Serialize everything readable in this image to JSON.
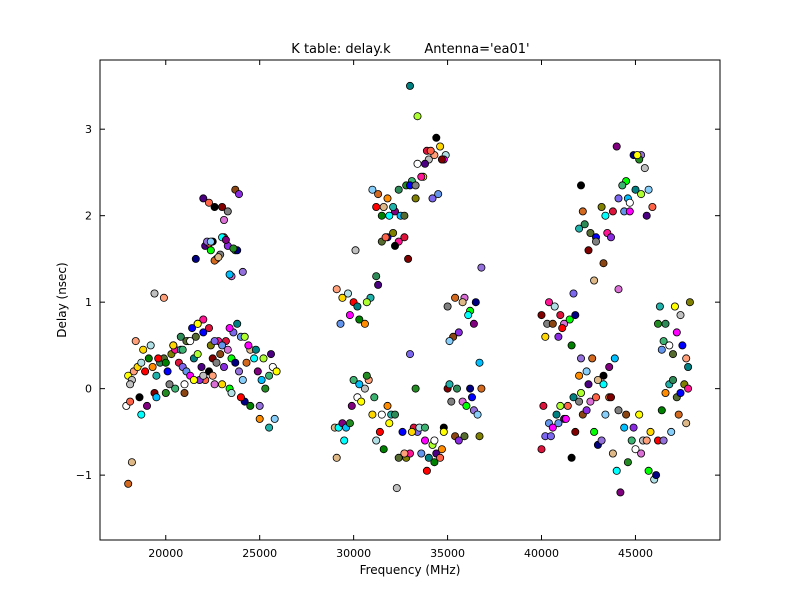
{
  "chart_data": {
    "type": "scatter",
    "title": "K table: delay.k",
    "antenna_label": "Antenna='ea01'",
    "xlabel": "Frequency (MHz)",
    "ylabel": "Delay (nsec)",
    "xlim": [
      16500,
      49500
    ],
    "ylim": [
      -1.75,
      3.8
    ],
    "xticks": [
      20000,
      25000,
      30000,
      35000,
      40000,
      45000
    ],
    "yticks": [
      -1,
      0,
      1,
      2,
      3
    ],
    "xtick_labels": [
      "20000",
      "25000",
      "30000",
      "35000",
      "40000",
      "45000"
    ],
    "ytick_labels": [
      "−1",
      "0",
      "1",
      "2",
      "3"
    ],
    "grid": false,
    "legend": "none",
    "marker": "circle, black edge",
    "palette": [
      "#ffffff",
      "#000000",
      "#ff0000",
      "#00ff00",
      "#0000ff",
      "#00ffff",
      "#ff00ff",
      "#ffff00",
      "#800000",
      "#008000",
      "#000080",
      "#808000",
      "#800080",
      "#008080",
      "#c0c0c0",
      "#808080",
      "#ff8c00",
      "#9370db",
      "#ff1493",
      "#00bfff",
      "#adff2f",
      "#ffa07a",
      "#8b4513",
      "#20b2aa",
      "#87cefa",
      "#dc143c",
      "#228b22",
      "#4b0082",
      "#ffd700",
      "#8a2be2",
      "#2e8b57",
      "#d2691e",
      "#7b68ee",
      "#3cb371",
      "#ff6347",
      "#b0e0e6",
      "#da70d6",
      "#556b2f",
      "#deb887",
      "#6495ed"
    ],
    "series": [
      {
        "x": [
          17900,
          18000,
          18200,
          18300,
          18500,
          18700,
          18900,
          19100,
          19300,
          19500,
          19700,
          19900,
          20100,
          20300,
          20500,
          20700,
          20900,
          21100,
          21300,
          21500,
          21700,
          21900,
          22100,
          22300,
          22500,
          22700,
          22900,
          23100,
          23300,
          23500,
          23700,
          23900,
          24100,
          24300,
          24500,
          24700,
          24900,
          25100,
          25300,
          25500,
          25700,
          25900,
          18100,
          18400,
          18800,
          19200,
          19600,
          20000,
          20400,
          20800,
          21200,
          21600,
          22000,
          22400,
          22800,
          23200,
          23600,
          24000,
          24400,
          24800,
          25200,
          25600,
          18100,
          18600,
          19400,
          20200,
          21000,
          21800,
          22600,
          23400,
          24200,
          25000,
          25800,
          18000,
          18200,
          18700,
          19000,
          19500,
          20000,
          20500,
          21000,
          21500,
          22000,
          22500,
          23000,
          23500,
          24000,
          24500,
          25000,
          25500,
          20800,
          21100,
          21400,
          21700,
          22000,
          22300,
          22600,
          23000,
          23400,
          23800,
          24200,
          22000,
          22300,
          22600,
          23000,
          23300,
          23700,
          23900,
          23100,
          22400,
          21600,
          24100
        ],
        "y": [
          -0.2,
          0.15,
          0.1,
          0.2,
          0.25,
          0.3,
          0.2,
          0.35,
          0.25,
          0.15,
          0.3,
          0.35,
          0.2,
          0.4,
          0.45,
          0.3,
          0.25,
          0.2,
          0.15,
          0.35,
          0.4,
          0.25,
          0.1,
          0.2,
          0.35,
          0.3,
          0.4,
          0.25,
          0.45,
          0.35,
          0.3,
          0.2,
          0.1,
          0.3,
          0.45,
          0.35,
          0.2,
          0.1,
          0.0,
          0.15,
          0.25,
          0.2,
          0.05,
          0.55,
          0.45,
          0.5,
          0.35,
          0.3,
          0.5,
          0.45,
          0.55,
          0.6,
          0.65,
          0.5,
          0.55,
          0.55,
          0.65,
          0.6,
          0.5,
          0.45,
          0.35,
          0.4,
          -0.15,
          -0.1,
          -0.05,
          0.05,
          -0.05,
          0.1,
          0.05,
          0.0,
          -0.15,
          -0.2,
          -0.35,
          -1.1,
          -0.85,
          -0.3,
          -0.2,
          -0.1,
          -0.05,
          0.0,
          0.05,
          0.1,
          0.15,
          0.15,
          0.05,
          -0.05,
          -0.1,
          -0.2,
          -0.35,
          -0.45,
          0.6,
          0.55,
          0.7,
          0.75,
          0.8,
          0.7,
          0.55,
          0.5,
          0.7,
          0.75,
          0.6,
          2.2,
          2.15,
          2.1,
          2.1,
          2.05,
          2.3,
          2.25,
          1.95,
          1.6,
          1.5,
          1.35
        ]
      },
      {
        "x": [
          22100,
          22300,
          22500,
          22700,
          22900,
          23100,
          23300,
          23500,
          23700,
          23800,
          22200,
          22400,
          22600,
          22800,
          23000,
          23200,
          23400,
          23600,
          20900,
          21300,
          21700,
          19400,
          19900,
          20400
        ],
        "y": [
          1.65,
          1.68,
          1.7,
          1.5,
          1.55,
          1.75,
          1.65,
          1.3,
          1.6,
          1.6,
          1.7,
          1.7,
          1.48,
          1.52,
          1.75,
          1.72,
          1.32,
          1.62,
          0.45,
          0.55,
          0.75,
          1.1,
          1.05,
          0.5
        ]
      },
      {
        "x": [
          29000,
          29200,
          29400,
          29600,
          29800,
          30000,
          30200,
          30400,
          30600,
          30800,
          31000,
          31200,
          31400,
          31600,
          31800,
          32000,
          32200,
          32400,
          32600,
          32800,
          33000,
          33200,
          33400,
          33600,
          33800,
          34000,
          34200,
          34400,
          34600,
          34800,
          35000,
          35200,
          35400,
          35600,
          35800,
          36000,
          36200,
          36400,
          36600,
          36800,
          29100,
          29500,
          29900,
          30300,
          30700,
          31100,
          31500,
          31900,
          32300,
          32700,
          33100,
          33500,
          33900,
          34300,
          34700,
          35100,
          35500,
          35900,
          36300,
          36700
        ],
        "y": [
          -0.45,
          -0.45,
          -0.4,
          -0.45,
          -0.4,
          0.1,
          -0.1,
          -0.15,
          0.0,
          0.1,
          -0.3,
          -0.6,
          -0.5,
          -0.7,
          -0.2,
          -0.3,
          -0.3,
          -0.8,
          -0.5,
          -0.8,
          -0.75,
          -0.45,
          -0.5,
          -0.75,
          -0.6,
          -0.8,
          -0.65,
          -0.75,
          -0.8,
          -0.45,
          0.0,
          -0.15,
          -0.55,
          -0.6,
          -0.15,
          -0.2,
          0.0,
          -0.25,
          -0.3,
          0.0,
          -0.8,
          -0.6,
          -0.2,
          0.05,
          0.15,
          -0.1,
          -0.3,
          -0.4,
          -1.15,
          -0.75,
          -0.5,
          -0.45,
          -0.95,
          -0.85,
          -0.7,
          0.05,
          0.0,
          -0.55,
          -0.1,
          -0.55
        ]
      },
      {
        "x": [
          29100,
          29400,
          29700,
          30000,
          30300,
          30600,
          30900,
          31200,
          31500,
          31800,
          32100,
          32400,
          32700,
          33000,
          29300,
          29800,
          30200,
          30700,
          31300,
          31700,
          32200,
          32900,
          35000,
          35300,
          35600,
          35900,
          36200,
          36500,
          36800,
          35100,
          35400,
          35800,
          36100,
          36400,
          36700,
          33300,
          33800,
          34300,
          34800,
          30100
        ],
        "y": [
          1.15,
          1.05,
          1.1,
          1.0,
          0.8,
          0.75,
          1.05,
          1.3,
          1.7,
          1.75,
          1.8,
          1.7,
          1.75,
          0.4,
          0.75,
          0.85,
          0.95,
          1.0,
          1.2,
          1.75,
          1.65,
          1.5,
          0.95,
          0.6,
          0.65,
          1.05,
          0.9,
          1.0,
          1.4,
          0.55,
          1.05,
          1.0,
          0.85,
          0.75,
          0.3,
          0.0,
          -0.45,
          -0.6,
          -0.5,
          1.6
        ]
      },
      {
        "x": [
          31000,
          31300,
          31600,
          31900,
          32200,
          32500,
          32800,
          33100,
          33400,
          33700,
          34000,
          34300,
          34600,
          34900,
          31200,
          31500,
          31800,
          32100,
          32400,
          32700,
          33000,
          33300,
          33600,
          33900,
          34200,
          34500,
          34800,
          33000,
          33400,
          33800,
          34100,
          34400,
          34700,
          33300
        ],
        "y": [
          2.3,
          2.25,
          2.1,
          2.0,
          2.05,
          2.0,
          2.35,
          2.4,
          2.6,
          2.45,
          2.65,
          2.7,
          2.8,
          2.7,
          2.1,
          2.0,
          2.2,
          2.1,
          2.3,
          2.0,
          2.35,
          2.2,
          2.45,
          2.75,
          2.2,
          2.25,
          2.65,
          3.5,
          3.15,
          2.6,
          2.75,
          2.9,
          2.65,
          2.35
        ]
      },
      {
        "x": [
          40000,
          40200,
          40400,
          40600,
          40800,
          41000,
          41200,
          41400,
          41600,
          41800,
          42000,
          42200,
          42400,
          42600,
          42800,
          43000,
          43200,
          43400,
          43600,
          43800,
          44000,
          44200,
          44400,
          44600,
          44800,
          45000,
          45200,
          45400,
          45600,
          45800,
          46000,
          46200,
          46400,
          46600,
          46800,
          47000,
          47200,
          47400,
          47600,
          47800,
          40100,
          40500,
          40900,
          41300,
          41700,
          42100,
          42500,
          42900,
          43300,
          43700,
          44100,
          44500,
          44900,
          45300,
          45700,
          46100,
          46500,
          46900,
          47300,
          47700
        ],
        "y": [
          -0.7,
          -0.55,
          -0.4,
          -0.45,
          -0.3,
          -0.2,
          -0.35,
          -0.2,
          -0.8,
          -0.5,
          -0.15,
          -0.3,
          -0.25,
          -0.15,
          -0.5,
          -0.65,
          -0.6,
          -0.3,
          -0.1,
          -0.75,
          -0.95,
          -1.2,
          -0.45,
          -0.85,
          -0.6,
          -0.7,
          -0.3,
          -0.6,
          -0.6,
          -0.5,
          -1.05,
          -0.6,
          -0.25,
          -0.05,
          0.05,
          0.1,
          -0.1,
          -0.05,
          0.05,
          0.0,
          -0.2,
          -0.55,
          -0.4,
          -0.35,
          -0.1,
          -0.05,
          0.05,
          -0.1,
          0.15,
          -0.1,
          -0.25,
          -0.3,
          -0.45,
          -0.75,
          -0.95,
          -1.0,
          -0.6,
          -0.5,
          -0.3,
          -0.4
        ]
      },
      {
        "x": [
          40000,
          40300,
          40600,
          40900,
          41200,
          41500,
          41800,
          42100,
          42400,
          42700,
          43000,
          43300,
          43600,
          43900,
          46200,
          46500,
          46800,
          47100,
          47400,
          47700,
          40200,
          40700,
          41100,
          41600,
          42000,
          46300,
          46600,
          47000,
          47500,
          47900,
          40400,
          41000,
          41700,
          46400,
          47200,
          47800
        ],
        "y": [
          0.85,
          0.75,
          0.75,
          0.6,
          0.75,
          0.8,
          0.85,
          0.35,
          0.2,
          0.35,
          0.1,
          0.05,
          0.25,
          0.35,
          0.75,
          0.55,
          0.5,
          0.95,
          0.85,
          0.35,
          0.6,
          0.95,
          0.7,
          0.5,
          0.15,
          0.95,
          0.75,
          0.4,
          0.5,
          1.0,
          1.0,
          0.85,
          1.1,
          0.45,
          0.65,
          0.25
        ]
      },
      {
        "x": [
          42000,
          42300,
          42600,
          42900,
          43200,
          43500,
          43800,
          44100,
          44400,
          44700,
          45000,
          45300,
          45600,
          45900,
          42100,
          42500,
          42900,
          43300,
          43700,
          44100,
          44500,
          44900,
          45300,
          45700,
          42200,
          42800,
          43400,
          44000,
          44600,
          45200,
          44300,
          44700,
          45100,
          45500
        ],
        "y": [
          1.85,
          1.9,
          1.8,
          1.75,
          2.1,
          1.8,
          2.05,
          2.2,
          2.05,
          2.05,
          2.3,
          2.25,
          2.0,
          2.1,
          2.35,
          1.6,
          1.7,
          1.45,
          1.75,
          1.15,
          2.4,
          2.7,
          2.7,
          2.3,
          2.05,
          1.25,
          2.0,
          2.8,
          2.2,
          2.65,
          2.35,
          2.15,
          2.7,
          2.55
        ]
      }
    ]
  }
}
